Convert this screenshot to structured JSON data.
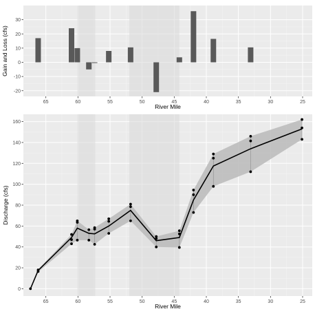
{
  "colors": {
    "panel": "#ebebeb",
    "grid_major": "#ffffff",
    "grid_minor": "#f4f4f4",
    "shade": "#d9d9d9",
    "bar": "#595959",
    "ribbon": "#bdbdbd",
    "line": "#000000"
  },
  "chart_data": [
    {
      "type": "bar",
      "xlabel": "River Mile",
      "ylabel": "Gain and Loss (cfs)",
      "xlim": [
        68.5,
        23.5
      ],
      "ylim": [
        -24,
        40
      ],
      "x_reversed": true,
      "grid": true,
      "x_ticks": [
        65,
        60,
        55,
        50,
        45,
        40,
        35,
        30,
        25
      ],
      "y_ticks": [
        -20,
        -10,
        0,
        10,
        20,
        30
      ],
      "shaded_regions": [
        [
          60.1,
          57.3
        ],
        [
          52,
          44.2
        ]
      ],
      "bars": [
        {
          "x": 66.2,
          "value": 17
        },
        {
          "x": 61.0,
          "value": 24
        },
        {
          "x": 60.1,
          "value": 10
        },
        {
          "x": 58.3,
          "value": -5
        },
        {
          "x": 57.4,
          "value": -0.5
        },
        {
          "x": 55.2,
          "value": 8
        },
        {
          "x": 51.8,
          "value": 10.5
        },
        {
          "x": 47.8,
          "value": -21
        },
        {
          "x": 44.2,
          "value": 3.5
        },
        {
          "x": 42.0,
          "value": 36
        },
        {
          "x": 38.9,
          "value": 16.5
        },
        {
          "x": 33.1,
          "value": 10.5
        }
      ]
    },
    {
      "type": "line",
      "xlabel": "River Mile",
      "ylabel": "Discharge (cfs)",
      "xlim": [
        68.5,
        23.5
      ],
      "ylim": [
        -7,
        167
      ],
      "x_reversed": true,
      "grid": true,
      "x_ticks": [
        65,
        60,
        55,
        50,
        45,
        40,
        35,
        30,
        25
      ],
      "y_ticks": [
        0,
        20,
        40,
        60,
        80,
        100,
        120,
        140,
        160
      ],
      "shaded_regions": [
        [
          60.1,
          57.3
        ],
        [
          52,
          44.2
        ]
      ],
      "series": [
        {
          "x": [
            67.4,
            66.2,
            61.0,
            60.1,
            58.3,
            57.4,
            55.2,
            51.8,
            47.8,
            44.2,
            42.0,
            38.9,
            33.1,
            25.1
          ],
          "mean": [
            0,
            17.5,
            49,
            58,
            53,
            52.5,
            60,
            75,
            46,
            49,
            85,
            117.5,
            134,
            153
          ],
          "lower": [
            0,
            16,
            43,
            46.5,
            46.5,
            42.5,
            53,
            65,
            40,
            39.5,
            73,
            98,
            112,
            143
          ],
          "upper": [
            0,
            18.5,
            52,
            65,
            56.5,
            58.5,
            67,
            81,
            50,
            55.5,
            94.5,
            129,
            146,
            162
          ]
        }
      ],
      "points": [
        {
          "x": 67.4,
          "y": 0
        },
        {
          "x": 66.2,
          "y": 16.5
        },
        {
          "x": 66.2,
          "y": 18
        },
        {
          "x": 61.0,
          "y": 43
        },
        {
          "x": 61.0,
          "y": 47
        },
        {
          "x": 61.0,
          "y": 52
        },
        {
          "x": 60.1,
          "y": 46.5
        },
        {
          "x": 60.1,
          "y": 63.5
        },
        {
          "x": 60.1,
          "y": 65
        },
        {
          "x": 58.3,
          "y": 46.5
        },
        {
          "x": 58.3,
          "y": 56.5
        },
        {
          "x": 57.4,
          "y": 42.5
        },
        {
          "x": 57.4,
          "y": 57
        },
        {
          "x": 57.4,
          "y": 58.5
        },
        {
          "x": 55.2,
          "y": 53
        },
        {
          "x": 55.2,
          "y": 64.5
        },
        {
          "x": 55.2,
          "y": 67
        },
        {
          "x": 51.8,
          "y": 65
        },
        {
          "x": 51.8,
          "y": 78.5
        },
        {
          "x": 51.8,
          "y": 81
        },
        {
          "x": 47.8,
          "y": 40
        },
        {
          "x": 47.8,
          "y": 48
        },
        {
          "x": 47.8,
          "y": 50
        },
        {
          "x": 44.2,
          "y": 39.5
        },
        {
          "x": 44.2,
          "y": 52.5
        },
        {
          "x": 44.2,
          "y": 55.5
        },
        {
          "x": 42.0,
          "y": 73
        },
        {
          "x": 42.0,
          "y": 90
        },
        {
          "x": 42.0,
          "y": 94.5
        },
        {
          "x": 38.9,
          "y": 98
        },
        {
          "x": 38.9,
          "y": 125
        },
        {
          "x": 38.9,
          "y": 129
        },
        {
          "x": 33.1,
          "y": 112
        },
        {
          "x": 33.1,
          "y": 141.5
        },
        {
          "x": 33.1,
          "y": 146
        },
        {
          "x": 25.1,
          "y": 143
        },
        {
          "x": 25.1,
          "y": 154
        },
        {
          "x": 25.1,
          "y": 162
        }
      ]
    }
  ]
}
